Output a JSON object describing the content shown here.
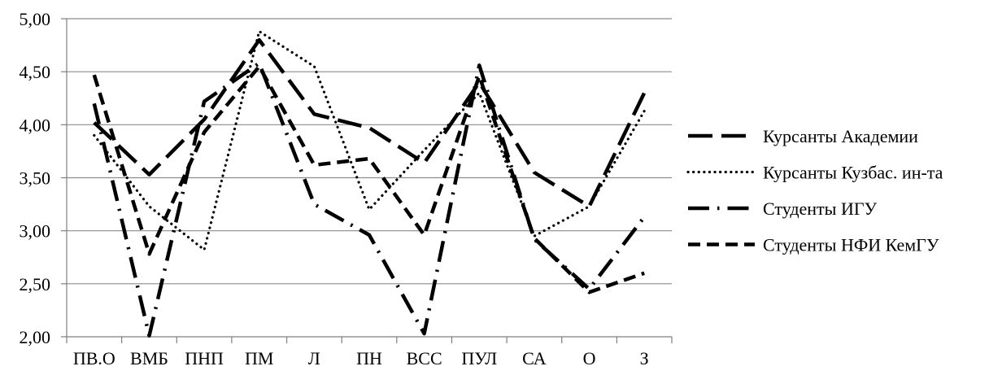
{
  "chart_data": {
    "type": "line",
    "categories": [
      "ПВ.О",
      "ВМБ",
      "ПНП",
      "ПМ",
      "Л",
      "ПН",
      "ВСС",
      "ПУЛ",
      "СА",
      "О",
      "З"
    ],
    "ylim": [
      2.0,
      5.0
    ],
    "yticks": [
      "2,00",
      "2,50",
      "3,00",
      "3,50",
      "4,00",
      "4,50",
      "5,00"
    ],
    "grid": "horizontal",
    "legend_position": "right",
    "series": [
      {
        "name": "Курсанты Академии",
        "style": "long-dash",
        "values": [
          4.02,
          3.53,
          4.05,
          4.8,
          4.1,
          3.97,
          3.64,
          4.4,
          3.55,
          3.23,
          4.3
        ]
      },
      {
        "name": "Курсанты Кузбас. ин-та",
        "style": "dot",
        "values": [
          3.9,
          3.23,
          2.82,
          4.88,
          4.55,
          3.2,
          3.76,
          4.3,
          2.95,
          3.23,
          4.13
        ]
      },
      {
        "name": "Студенты ИГУ",
        "style": "dash-dot",
        "values": [
          4.2,
          2.01,
          4.22,
          4.58,
          3.25,
          2.96,
          2.03,
          4.56,
          2.92,
          2.45,
          3.13
        ]
      },
      {
        "name": "Студенты НФИ КемГУ",
        "style": "dash",
        "values": [
          4.47,
          2.78,
          3.93,
          4.55,
          3.62,
          3.68,
          2.96,
          4.46,
          2.93,
          2.42,
          2.6
        ]
      }
    ]
  }
}
